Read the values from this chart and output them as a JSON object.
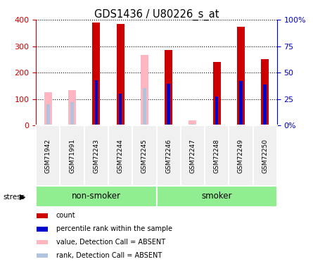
{
  "title": "GDS1436 / U80226_s_at",
  "samples": [
    "GSM71942",
    "GSM71991",
    "GSM72243",
    "GSM72244",
    "GSM72245",
    "GSM72246",
    "GSM72247",
    "GSM72248",
    "GSM72249",
    "GSM72250"
  ],
  "count_values": [
    0,
    0,
    390,
    385,
    0,
    285,
    0,
    240,
    375,
    250
  ],
  "rank_values": [
    0,
    0,
    170,
    120,
    0,
    158,
    0,
    110,
    168,
    155
  ],
  "absent_count": [
    125,
    135,
    0,
    0,
    268,
    0,
    20,
    0,
    0,
    0
  ],
  "absent_rank": [
    80,
    88,
    0,
    0,
    143,
    0,
    5,
    0,
    0,
    0
  ],
  "detection_absent": [
    true,
    true,
    false,
    false,
    true,
    false,
    true,
    false,
    false,
    false
  ],
  "ylim": [
    0,
    400
  ],
  "y2lim": [
    0,
    100
  ],
  "yticks": [
    0,
    100,
    200,
    300,
    400
  ],
  "y2ticks": [
    0,
    25,
    50,
    75,
    100
  ],
  "y2ticklabels": [
    "0",
    "25",
    "50",
    "75",
    "100%"
  ],
  "color_red": "#cc0000",
  "color_blue": "#0000cc",
  "color_pink": "#ffb6c1",
  "color_lightblue": "#b0c4de",
  "axis_label_color_left": "#cc0000",
  "axis_label_color_right": "#0000cc",
  "bar_width": 0.32,
  "rank_bar_width": 0.13,
  "bg_color": "#f0f0f0",
  "green_color": "#90EE90",
  "white": "#ffffff"
}
